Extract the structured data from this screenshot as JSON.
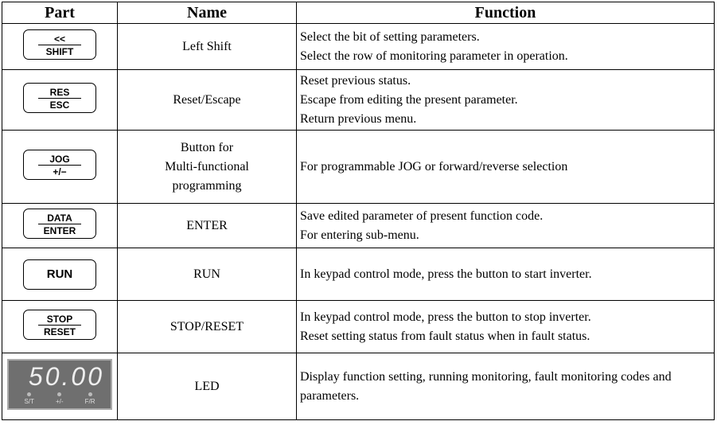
{
  "header": {
    "columns": [
      "Part",
      "Name",
      "Function"
    ]
  },
  "table": {
    "rows": [
      {
        "part": {
          "top": "<<",
          "bottom": "SHIFT"
        },
        "name": [
          "Left Shift"
        ],
        "function": [
          "Select the bit of setting parameters.",
          "Select the row of monitoring parameter in operation."
        ]
      },
      {
        "part": {
          "top": "RES",
          "bottom": "ESC"
        },
        "name": [
          "Reset/Escape"
        ],
        "function": [
          "Reset previous status.",
          "Escape from editing the present parameter.",
          "Return previous menu."
        ]
      },
      {
        "part": {
          "top": "JOG",
          "bottom": "+/−"
        },
        "name": [
          "Button for",
          "Multi-functional",
          "programming"
        ],
        "function": [
          "For programmable JOG or forward/reverse selection"
        ]
      },
      {
        "part": {
          "top": "DATA",
          "bottom": "ENTER"
        },
        "name": [
          "ENTER"
        ],
        "function": [
          "Save edited parameter of present function code.",
          "For entering sub-menu."
        ]
      },
      {
        "part": {
          "label": "RUN"
        },
        "name": [
          "RUN"
        ],
        "function": [
          "In keypad control mode, press the button to start inverter."
        ]
      },
      {
        "part": {
          "top": "STOP",
          "bottom": "RESET"
        },
        "name": [
          "STOP/RESET"
        ],
        "function": [
          "In keypad control mode, press the button to stop inverter.",
          "Reset setting status from fault status when in fault status."
        ]
      },
      {
        "part": {
          "display": "50.00",
          "indicators": [
            "S/T",
            "+/-",
            "F/R"
          ]
        },
        "name": [
          "LED"
        ],
        "function": [
          "Display function setting, running monitoring, fault monitoring codes and parameters."
        ]
      }
    ]
  }
}
